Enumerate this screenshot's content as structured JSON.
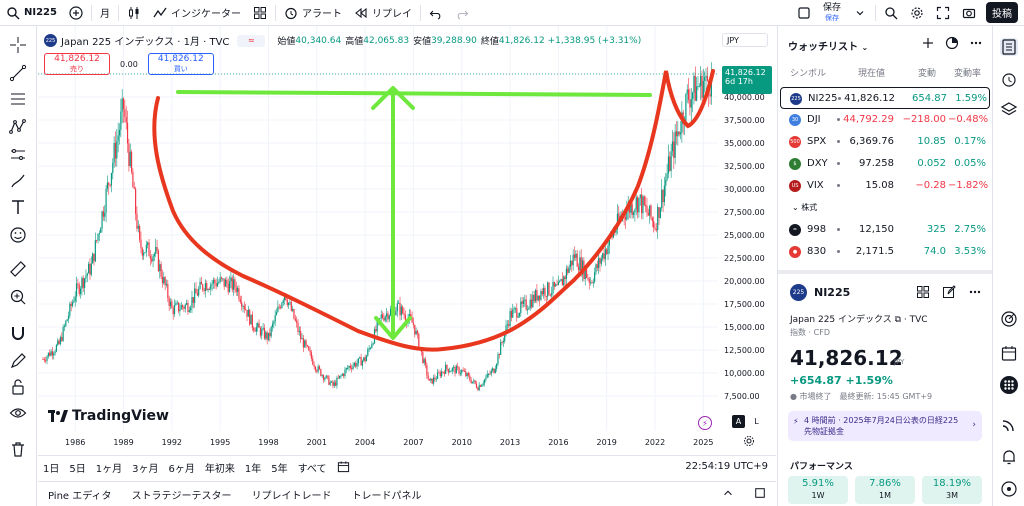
{
  "topbar": {
    "symbol": "NI225",
    "interval": "月",
    "indicators_label": "インジケーター",
    "alert_label": "アラート",
    "replay_label": "リプレイ",
    "save_label": "保存",
    "save_sub": "保存",
    "post_label": "投稿"
  },
  "legend": {
    "badge": "225",
    "title": "Japan 225 インデックス · 1月 · TVC",
    "open_k": "始値",
    "open_v": "40,340.64",
    "high_k": "高値",
    "high_v": "42,065.83",
    "low_k": "安値",
    "low_v": "39,288.90",
    "close_k": "終値",
    "close_v": "41,826.12 +1,338.95 (+3.31%)",
    "sell_price": "41,826.12",
    "sell_label": "売り",
    "spread": "0.00",
    "buy_price": "41,826.12",
    "buy_label": "買い",
    "currency": "JPY",
    "price_tag_price": "41,826.12",
    "price_tag_time": "6d 17h",
    "brand": "TradingView"
  },
  "axis": {
    "years": [
      "1986",
      "1989",
      "1992",
      "1995",
      "1998",
      "2001",
      "2004",
      "2007",
      "2010",
      "2013",
      "2016",
      "2019",
      "2022",
      "2025"
    ],
    "prices": [
      "42,500.00",
      "40,000.00",
      "37,500.00",
      "35,000.00",
      "32,500.00",
      "30,000.00",
      "27,500.00",
      "25,000.00",
      "22,500.00",
      "20,000.00",
      "17,500.00",
      "15,000.00",
      "12,500.00",
      "10,000.00",
      "7,500.00"
    ]
  },
  "chart_data": {
    "type": "candlestick",
    "title": "Japan 225 インデックス · 1月 · TVC",
    "x": [
      1984,
      1985,
      1986,
      1987,
      1988,
      1989,
      1990,
      1991,
      1992,
      1993,
      1994,
      1995,
      1996,
      1997,
      1998,
      1999,
      2000,
      2001,
      2002,
      2003,
      2004,
      2005,
      2006,
      2007,
      2008,
      2009,
      2010,
      2011,
      2012,
      2013,
      2014,
      2015,
      2016,
      2017,
      2018,
      2019,
      2020,
      2021,
      2022,
      2023,
      2024,
      2025
    ],
    "values": [
      11500,
      13100,
      18700,
      21600,
      30100,
      38900,
      23800,
      22900,
      16900,
      17400,
      19700,
      19900,
      19400,
      15300,
      13800,
      18900,
      13800,
      10500,
      8600,
      10700,
      11500,
      16100,
      17200,
      15300,
      8900,
      10500,
      10200,
      8500,
      10400,
      16300,
      17400,
      19000,
      19100,
      22800,
      20000,
      23700,
      27400,
      28800,
      26100,
      33500,
      39900,
      41826
    ],
    "ylim": [
      7500,
      42500
    ],
    "xlabel": "",
    "ylabel": "",
    "grid": true,
    "annotations": [
      "red cup-shaped curve drawn over 1990–2025",
      "green horizontal line near 40,000",
      "green double arrow between 40,000 and ~13,000"
    ]
  },
  "timeframes": [
    "1日",
    "5日",
    "1ヶ月",
    "3ヶ月",
    "6ヶ月",
    "年初来",
    "1年",
    "5年",
    "すべて"
  ],
  "clock": "22:54:19 UTC+9",
  "bottom_tabs": [
    "Pine エディタ",
    "ストラテジーテスター",
    "リプレイトレード",
    "トレードパネル"
  ],
  "watchlist": {
    "title": "ウォッチリスト",
    "col_symbol": "シンボル",
    "col_last": "現在値",
    "col_change": "変動",
    "col_pct": "変動率",
    "rows": [
      {
        "icon": "225",
        "symbol": "NI225",
        "last": "41,826.12",
        "change": "654.87",
        "pct": "1.59%",
        "dir": "up",
        "color": "#1e3a8a"
      },
      {
        "icon": "30",
        "symbol": "DJI",
        "last": "44,792.29",
        "change": "−218.00",
        "pct": "−0.48%",
        "dir": "dn",
        "color": "#3f7fe0"
      },
      {
        "icon": "500",
        "symbol": "SPX",
        "last": "6,369.76",
        "change": "10.85",
        "pct": "0.17%",
        "dir": "up",
        "color": "#e53935"
      },
      {
        "icon": "$",
        "symbol": "DXY",
        "last": "97.258",
        "change": "0.052",
        "pct": "0.05%",
        "dir": "up",
        "color": "#2e7d32"
      },
      {
        "icon": "US",
        "symbol": "VIX",
        "last": "15.08",
        "change": "−0.28",
        "pct": "−1.82%",
        "dir": "dn",
        "color": "#b71c1c"
      }
    ],
    "section_label": "株式",
    "stock_rows": [
      {
        "icon": "=",
        "symbol": "998",
        "last": "12,150",
        "change": "325",
        "pct": "2.75%",
        "dir": "up",
        "color": "#131722"
      },
      {
        "icon": "●",
        "symbol": "830",
        "last": "2,171.5",
        "change": "74.0",
        "pct": "3.53%",
        "dir": "up",
        "color": "#e53935"
      }
    ]
  },
  "detail": {
    "badge": "225",
    "symbol": "NI225",
    "name": "Japan 225 インデックス ⧉ · TVC",
    "category": "指数 · CFD",
    "price": "41,826.12",
    "currency": "JPY",
    "change": "+654.87  +1.59%",
    "status": "● 市場終了　最終更新: 15:45 GMT+9",
    "news": "4 時間前 · 2025年7月24日公表の日経225先物証拠金",
    "perf_title": "パフォーマンス",
    "perf": [
      {
        "value": "5.91%",
        "label": "1W"
      },
      {
        "value": "7.86%",
        "label": "1M"
      },
      {
        "value": "18.19%",
        "label": "3M"
      }
    ]
  }
}
